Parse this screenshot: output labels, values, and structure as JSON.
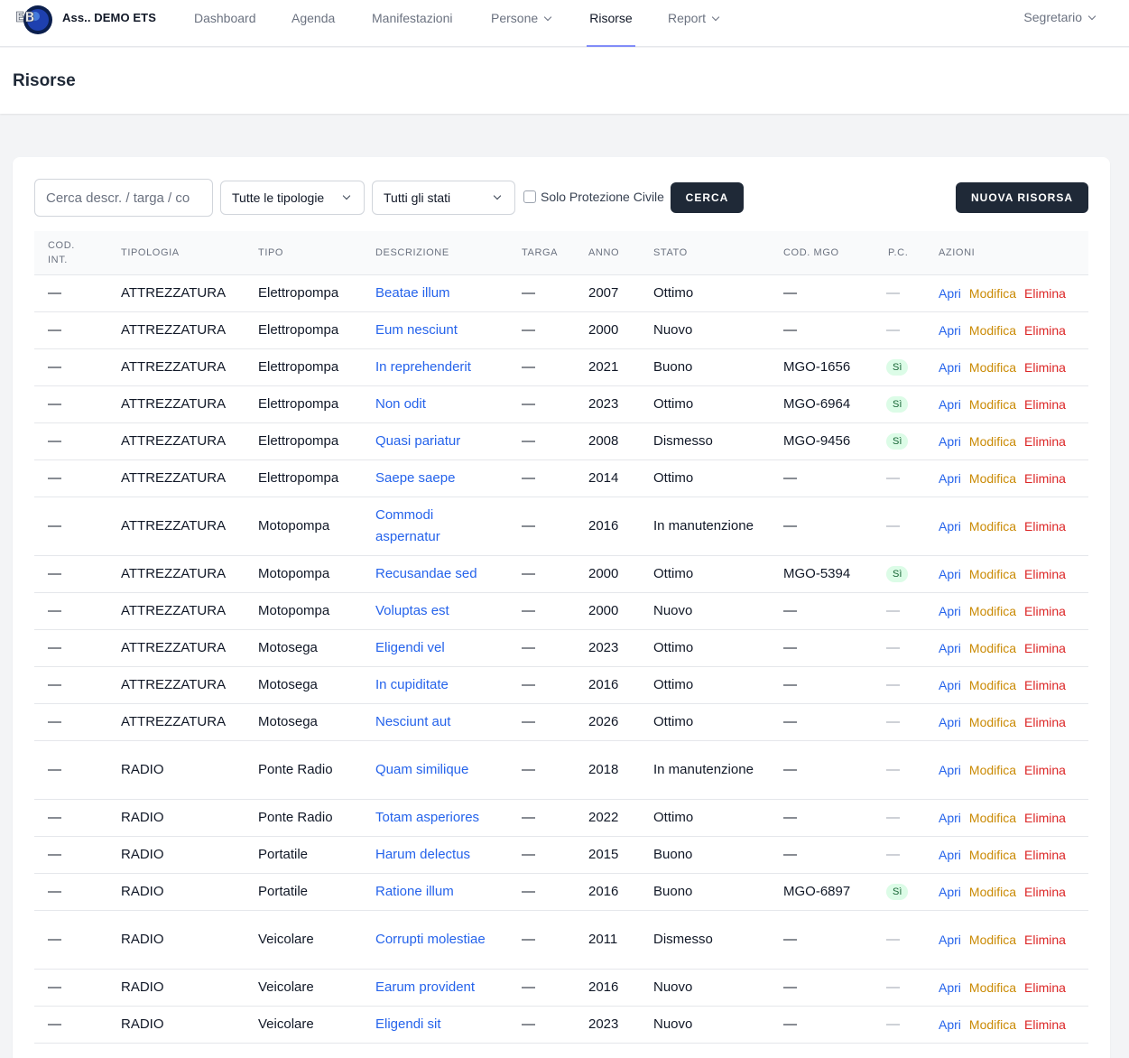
{
  "app": {
    "brand": "Ass.. DEMO ETS",
    "user": "Segretario"
  },
  "nav": {
    "dashboard": "Dashboard",
    "agenda": "Agenda",
    "manifestazioni": "Manifestazioni",
    "persone": "Persone",
    "risorse": "Risorse",
    "report": "Report"
  },
  "page": {
    "title": "Risorse"
  },
  "filters": {
    "search_placeholder": "Cerca descr. / targa / co",
    "tipologia": "Tutte le tipologie",
    "stato": "Tutti gli stati",
    "protezione_label": "Solo Protezione Civile",
    "search_button": "CERCA",
    "new_button": "NUOVA RISORSA"
  },
  "table": {
    "headers": {
      "cod_int_1": "COD.",
      "cod_int_2": "INT.",
      "tipologia": "TIPOLOGIA",
      "tipo": "TIPO",
      "descrizione": "DESCRIZIONE",
      "targa": "TARGA",
      "anno": "ANNO",
      "stato": "STATO",
      "cod_mgo": "COD. MGO",
      "pc": "P.C.",
      "azioni": "AZIONI"
    },
    "actions": {
      "open": "Apri",
      "edit": "Modifica",
      "delete": "Elimina"
    },
    "pc_yes": "Sì",
    "empty": "—",
    "rows": [
      {
        "cod": "—",
        "tipologia": "ATTREZZATURA",
        "tipo": "Elettropompa",
        "descrizione": "Beatae illum",
        "targa": "—",
        "anno": "2007",
        "stato": "Ottimo",
        "mgo": "—",
        "pc": false,
        "tall": false
      },
      {
        "cod": "—",
        "tipologia": "ATTREZZATURA",
        "tipo": "Elettropompa",
        "descrizione": "Eum nesciunt",
        "targa": "—",
        "anno": "2000",
        "stato": "Nuovo",
        "mgo": "—",
        "pc": false,
        "tall": false
      },
      {
        "cod": "—",
        "tipologia": "ATTREZZATURA",
        "tipo": "Elettropompa",
        "descrizione": "In reprehenderit",
        "targa": "—",
        "anno": "2021",
        "stato": "Buono",
        "mgo": "MGO-1656",
        "pc": true,
        "tall": false
      },
      {
        "cod": "—",
        "tipologia": "ATTREZZATURA",
        "tipo": "Elettropompa",
        "descrizione": "Non odit",
        "targa": "—",
        "anno": "2023",
        "stato": "Ottimo",
        "mgo": "MGO-6964",
        "pc": true,
        "tall": false
      },
      {
        "cod": "—",
        "tipologia": "ATTREZZATURA",
        "tipo": "Elettropompa",
        "descrizione": "Quasi pariatur",
        "targa": "—",
        "anno": "2008",
        "stato": "Dismesso",
        "mgo": "MGO-9456",
        "pc": true,
        "tall": false
      },
      {
        "cod": "—",
        "tipologia": "ATTREZZATURA",
        "tipo": "Elettropompa",
        "descrizione": "Saepe saepe",
        "targa": "—",
        "anno": "2014",
        "stato": "Ottimo",
        "mgo": "—",
        "pc": false,
        "tall": false
      },
      {
        "cod": "—",
        "tipologia": "ATTREZZATURA",
        "tipo": "Motopompa",
        "descrizione": "Commodi aspernatur",
        "targa": "—",
        "anno": "2016",
        "stato": "In manutenzione",
        "mgo": "—",
        "pc": false,
        "tall": true
      },
      {
        "cod": "—",
        "tipologia": "ATTREZZATURA",
        "tipo": "Motopompa",
        "descrizione": "Recusandae sed",
        "targa": "—",
        "anno": "2000",
        "stato": "Ottimo",
        "mgo": "MGO-5394",
        "pc": true,
        "tall": false
      },
      {
        "cod": "—",
        "tipologia": "ATTREZZATURA",
        "tipo": "Motopompa",
        "descrizione": "Voluptas est",
        "targa": "—",
        "anno": "2000",
        "stato": "Nuovo",
        "mgo": "—",
        "pc": false,
        "tall": false
      },
      {
        "cod": "—",
        "tipologia": "ATTREZZATURA",
        "tipo": "Motosega",
        "descrizione": "Eligendi vel",
        "targa": "—",
        "anno": "2023",
        "stato": "Ottimo",
        "mgo": "—",
        "pc": false,
        "tall": false
      },
      {
        "cod": "—",
        "tipologia": "ATTREZZATURA",
        "tipo": "Motosega",
        "descrizione": "In cupiditate",
        "targa": "—",
        "anno": "2016",
        "stato": "Ottimo",
        "mgo": "—",
        "pc": false,
        "tall": false
      },
      {
        "cod": "—",
        "tipologia": "ATTREZZATURA",
        "tipo": "Motosega",
        "descrizione": "Nesciunt aut",
        "targa": "—",
        "anno": "2026",
        "stato": "Ottimo",
        "mgo": "—",
        "pc": false,
        "tall": false
      },
      {
        "cod": "—",
        "tipologia": "RADIO",
        "tipo": "Ponte Radio",
        "descrizione": "Quam similique",
        "targa": "—",
        "anno": "2018",
        "stato": "In manutenzione",
        "mgo": "—",
        "pc": false,
        "tall": true
      },
      {
        "cod": "—",
        "tipologia": "RADIO",
        "tipo": "Ponte Radio",
        "descrizione": "Totam asperiores",
        "targa": "—",
        "anno": "2022",
        "stato": "Ottimo",
        "mgo": "—",
        "pc": false,
        "tall": false
      },
      {
        "cod": "—",
        "tipologia": "RADIO",
        "tipo": "Portatile",
        "descrizione": "Harum delectus",
        "targa": "—",
        "anno": "2015",
        "stato": "Buono",
        "mgo": "—",
        "pc": false,
        "tall": false
      },
      {
        "cod": "—",
        "tipologia": "RADIO",
        "tipo": "Portatile",
        "descrizione": "Ratione illum",
        "targa": "—",
        "anno": "2016",
        "stato": "Buono",
        "mgo": "MGO-6897",
        "pc": true,
        "tall": false
      },
      {
        "cod": "—",
        "tipologia": "RADIO",
        "tipo": "Veicolare",
        "descrizione": "Corrupti molestiae",
        "targa": "—",
        "anno": "2011",
        "stato": "Dismesso",
        "mgo": "—",
        "pc": false,
        "tall": true
      },
      {
        "cod": "—",
        "tipologia": "RADIO",
        "tipo": "Veicolare",
        "descrizione": "Earum provident",
        "targa": "—",
        "anno": "2016",
        "stato": "Nuovo",
        "mgo": "—",
        "pc": false,
        "tall": false
      },
      {
        "cod": "—",
        "tipologia": "RADIO",
        "tipo": "Veicolare",
        "descrizione": "Eligendi sit",
        "targa": "—",
        "anno": "2023",
        "stato": "Nuovo",
        "mgo": "—",
        "pc": false,
        "tall": false
      }
    ]
  }
}
